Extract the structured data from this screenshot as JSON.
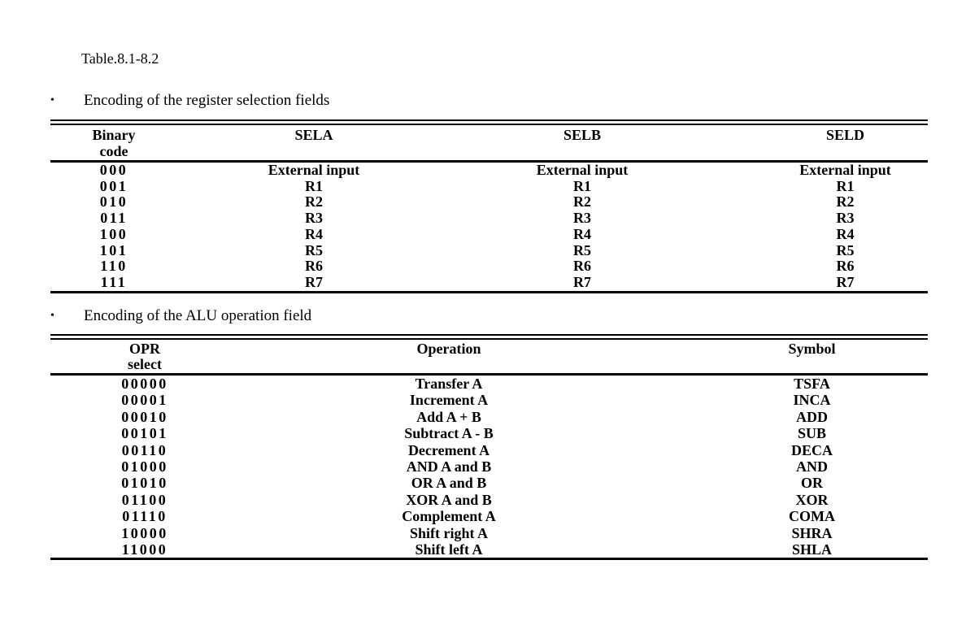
{
  "doc_title": "Table.8.1-8.2",
  "bullet_char": "•",
  "colors": {
    "text": "#000000",
    "background": "#ffffff"
  },
  "section1": {
    "heading": "Encoding of the register selection fields"
  },
  "t1": {
    "headers": {
      "c0a": "Binary",
      "c0b": "code",
      "c1": "SELA",
      "c2": "SELB",
      "c3": "SELD"
    },
    "rows": [
      [
        "000",
        "External input",
        "External input",
        "External input"
      ],
      [
        "001",
        "R1",
        "R1",
        "R1"
      ],
      [
        "010",
        "R2",
        "R2",
        "R2"
      ],
      [
        "011",
        "R3",
        "R3",
        "R3"
      ],
      [
        "100",
        "R4",
        "R4",
        "R4"
      ],
      [
        "101",
        "R5",
        "R5",
        "R5"
      ],
      [
        "110",
        "R6",
        "R6",
        "R6"
      ],
      [
        "111",
        "R7",
        "R7",
        "R7"
      ]
    ]
  },
  "section2": {
    "heading": "Encoding of the ALU operation field"
  },
  "t2": {
    "headers": {
      "c0a": "OPR",
      "c0b": "select",
      "c1": "Operation",
      "c2": "Symbol"
    },
    "rows": [
      [
        "00000",
        "Transfer A",
        "TSFA"
      ],
      [
        "00001",
        "Increment A",
        "INCA"
      ],
      [
        "00010",
        "Add A + B",
        "ADD"
      ],
      [
        "00101",
        "Subtract A - B",
        "SUB"
      ],
      [
        "00110",
        "Decrement A",
        "DECA"
      ],
      [
        "01000",
        "AND A and B",
        "AND"
      ],
      [
        "01010",
        "OR A and B",
        "OR"
      ],
      [
        "01100",
        "XOR A and B",
        "XOR"
      ],
      [
        "01110",
        "Complement A",
        "COMA"
      ],
      [
        "10000",
        "Shift right A",
        "SHRA"
      ],
      [
        "11000",
        "Shift left A",
        "SHLA"
      ]
    ]
  }
}
